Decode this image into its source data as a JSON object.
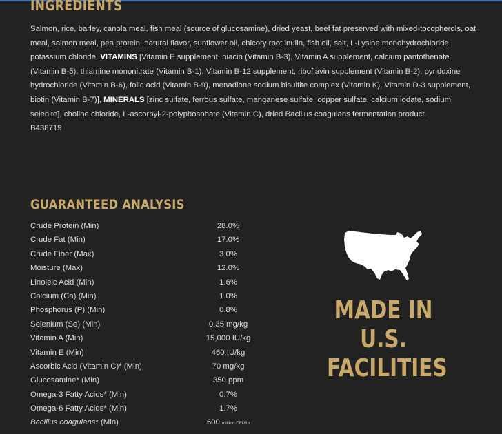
{
  "ingredients": {
    "heading": "INGREDIENTS",
    "text_part1": "Salmon, rice, barley, canola meal, fish meal (source of glucosamine), dried yeast, beef fat preserved with mixed-tocopherols, oat meal, salmon meal, pea protein, natural flavor, sunflower oil, chicory root inulin, fish oil, salt, L-Lysine monohydrochloride, potassium chloride, ",
    "vitamins_label": "VITAMINS",
    "text_part2": " [Vitamin E supplement, niacin (Vitamin B-3), Vitamin A supplement, calcium pantothenate (Vitamin B-5), thiamine mononitrate (Vitamin B-1), Vitamin B-12 supplement, riboflavin supplement (Vitamin B-2), pyridoxine hydrochloride (Vitamin B-6), folic acid (Vitamin B-9), menadione sodium bisulfite complex (Vitamin K), Vitamin D-3 supplement, biotin (Vitamin B-7)], ",
    "minerals_label": "MINERALS",
    "text_part3": " [zinc sulfate, ferrous sulfate, manganese sulfate, copper sulfate, calcium iodate, sodium selenite], choline chloride, L-ascorbyl-2-polyphosphate (Vitamin C), dried Bacillus coagulans fermentation product.",
    "code": "B438719"
  },
  "analysis": {
    "heading": "GUARANTEED ANALYSIS",
    "rows": [
      {
        "name": "Crude Protein (Min)",
        "value": "28.0%"
      },
      {
        "name": "Crude Fat (Min)",
        "value": "17.0%"
      },
      {
        "name": "Crude Fiber (Max)",
        "value": "3.0%"
      },
      {
        "name": "Moisture (Max)",
        "value": "12.0%"
      },
      {
        "name": "Linoleic Acid (Min)",
        "value": "1.6%"
      },
      {
        "name": "Calcium (Ca) (Min)",
        "value": "1.0%"
      },
      {
        "name": "Phosphorus (P) (Min)",
        "value": "0.8%"
      },
      {
        "name": "Selenium (Se) (Min)",
        "value": "0.35 mg/kg"
      },
      {
        "name": "Vitamin A (Min)",
        "value": "15,000 IU/kg"
      },
      {
        "name": "Vitamin E (Min)",
        "value": "460 IU/kg"
      },
      {
        "name": "Ascorbic Acid (Vitamin C)* (Min)",
        "value": "70 mg/kg"
      },
      {
        "name": "Glucosamine* (Min)",
        "value": "350 ppm"
      },
      {
        "name": "Omega-3 Fatty Acids* (Min)",
        "value": "0.7%"
      },
      {
        "name": "Omega-6 Fatty Acids* (Min)",
        "value": "1.7%"
      }
    ],
    "last_row": {
      "name_italic": "Bacillus coagulans",
      "name_rest": "* (Min)",
      "value": "600",
      "unit": "million CFU/lb"
    }
  },
  "badge": {
    "icon": "usa-map-icon",
    "line1": "MADE IN",
    "line2": "U.S.",
    "line3": "FACILITIES"
  },
  "colors": {
    "background": "#222222",
    "accent_gold": "#c8a96a"
  }
}
